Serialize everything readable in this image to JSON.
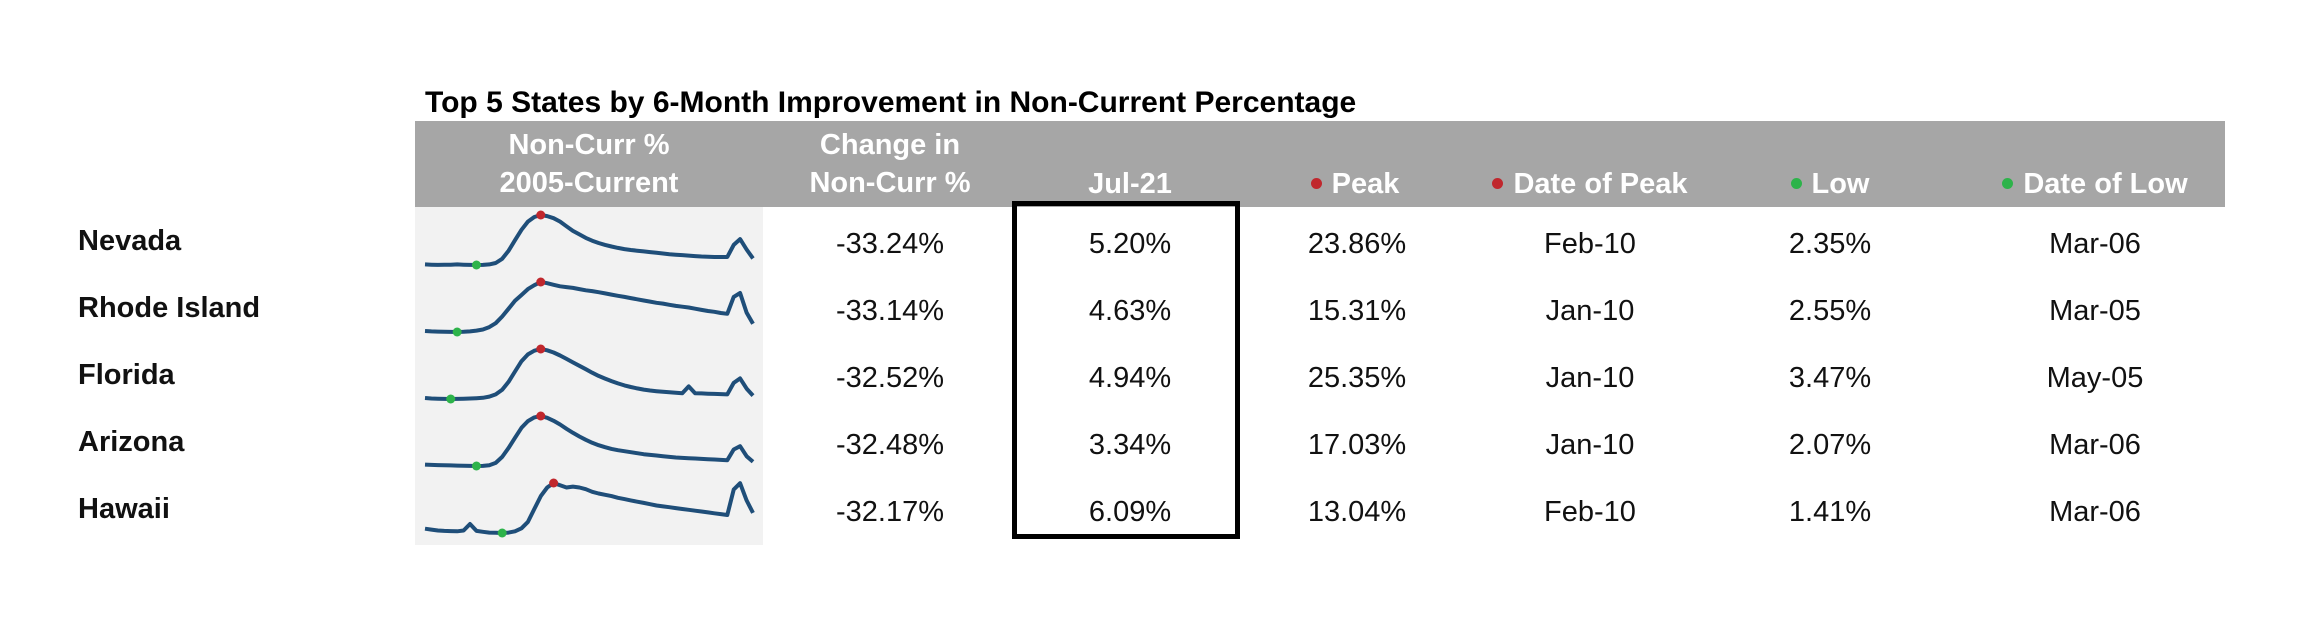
{
  "title": "Top 5 States by 6-Month Improvement in Non-Current Percentage",
  "headers": {
    "sparkline_line1": "Non-Curr %",
    "sparkline_line2": "2005-Current",
    "change_line1": "Change in",
    "change_line2": "Non-Curr %",
    "current": "Jul-21",
    "peak": "Peak",
    "date_of_peak": "Date of Peak",
    "low": "Low",
    "date_of_low": "Date of Low"
  },
  "colors": {
    "header_bg": "#a6a6a6",
    "header_text": "#ffffff",
    "sparkline": "#1f4e79",
    "peak_marker": "#c0272d",
    "low_marker": "#2db34a",
    "sparkline_bg": "#f2f2f2"
  },
  "chart_data": {
    "type": "table",
    "columns": [
      "State",
      "Non-Curr % 2005-Current",
      "Change in Non-Curr %",
      "Jul-21",
      "Peak",
      "Date of Peak",
      "Low",
      "Date of Low"
    ],
    "rows": [
      {
        "state": "Nevada",
        "change": "-33.24%",
        "current": "5.20%",
        "peak": "23.86%",
        "date_of_peak": "Feb-10",
        "low": "2.35%",
        "date_of_low": "Mar-06"
      },
      {
        "state": "Rhode Island",
        "change": "-33.14%",
        "current": "4.63%",
        "peak": "15.31%",
        "date_of_peak": "Jan-10",
        "low": "2.55%",
        "date_of_low": "Mar-05"
      },
      {
        "state": "Florida",
        "change": "-32.52%",
        "current": "4.94%",
        "peak": "25.35%",
        "date_of_peak": "Jan-10",
        "low": "3.47%",
        "date_of_low": "May-05"
      },
      {
        "state": "Arizona",
        "change": "-32.48%",
        "current": "3.34%",
        "peak": "17.03%",
        "date_of_peak": "Jan-10",
        "low": "2.07%",
        "date_of_low": "Mar-06"
      },
      {
        "state": "Hawaii",
        "change": "-32.17%",
        "current": "6.09%",
        "peak": "13.04%",
        "date_of_peak": "Feb-10",
        "low": "1.41%",
        "date_of_low": "Mar-06"
      }
    ],
    "sparklines": [
      {
        "state": "Nevada",
        "values": [
          2.6,
          2.5,
          2.4,
          2.45,
          2.5,
          2.6,
          2.5,
          2.4,
          2.35,
          2.4,
          2.6,
          3.2,
          5.0,
          8.5,
          13.0,
          17.5,
          21.0,
          23.0,
          23.86,
          23.4,
          22.5,
          21.0,
          19.0,
          17.0,
          15.5,
          14.0,
          12.8,
          11.8,
          11.0,
          10.3,
          9.7,
          9.2,
          8.8,
          8.5,
          8.2,
          7.9,
          7.6,
          7.3,
          7.0,
          6.8,
          6.6,
          6.4,
          6.2,
          6.0,
          5.9,
          5.8,
          5.8,
          5.8,
          11.0,
          13.5,
          9.0,
          5.2
        ],
        "peak_index": 18,
        "low_index": 8
      },
      {
        "state": "Rhode Island",
        "values": [
          2.8,
          2.7,
          2.65,
          2.6,
          2.58,
          2.55,
          2.6,
          2.7,
          2.9,
          3.2,
          3.8,
          4.8,
          6.5,
          8.5,
          10.5,
          12.0,
          13.5,
          14.5,
          15.31,
          15.0,
          14.6,
          14.2,
          14.0,
          13.8,
          13.5,
          13.2,
          13.0,
          12.7,
          12.4,
          12.1,
          11.8,
          11.5,
          11.2,
          10.9,
          10.6,
          10.3,
          10.0,
          9.8,
          9.5,
          9.2,
          9.0,
          8.8,
          8.5,
          8.2,
          7.9,
          7.7,
          7.4,
          7.2,
          11.5,
          12.5,
          7.5,
          4.63
        ],
        "peak_index": 18,
        "low_index": 5
      },
      {
        "state": "Florida",
        "values": [
          3.9,
          3.7,
          3.6,
          3.5,
          3.47,
          3.5,
          3.6,
          3.7,
          3.8,
          4.0,
          4.5,
          5.5,
          7.5,
          11.0,
          15.5,
          20.0,
          23.0,
          24.6,
          25.35,
          24.8,
          23.8,
          22.5,
          21.0,
          19.5,
          18.0,
          16.5,
          15.0,
          13.6,
          12.4,
          11.3,
          10.3,
          9.4,
          8.7,
          8.1,
          7.6,
          7.2,
          6.9,
          6.6,
          6.4,
          6.2,
          6.0,
          9.0,
          6.0,
          5.9,
          5.8,
          5.7,
          5.6,
          5.5,
          10.5,
          12.5,
          8.0,
          4.94
        ],
        "peak_index": 18,
        "low_index": 4
      },
      {
        "state": "Arizona",
        "values": [
          2.5,
          2.4,
          2.35,
          2.3,
          2.25,
          2.2,
          2.15,
          2.1,
          2.07,
          2.1,
          2.3,
          3.0,
          4.8,
          7.5,
          10.5,
          13.5,
          15.5,
          16.6,
          17.03,
          16.5,
          15.6,
          14.5,
          13.2,
          12.0,
          10.9,
          9.9,
          9.0,
          8.3,
          7.7,
          7.2,
          6.8,
          6.5,
          6.2,
          5.9,
          5.6,
          5.4,
          5.2,
          5.0,
          4.8,
          4.6,
          4.5,
          4.4,
          4.3,
          4.2,
          4.1,
          4.0,
          3.9,
          3.8,
          7.0,
          8.0,
          5.0,
          3.34
        ],
        "peak_index": 18,
        "low_index": 8
      },
      {
        "state": "Hawaii",
        "values": [
          2.4,
          2.2,
          2.0,
          1.9,
          1.85,
          1.8,
          2.0,
          3.5,
          1.9,
          1.7,
          1.5,
          1.45,
          1.41,
          1.5,
          1.8,
          2.5,
          4.0,
          7.0,
          10.0,
          12.0,
          13.04,
          12.5,
          12.0,
          12.2,
          12.0,
          11.6,
          11.0,
          10.6,
          10.3,
          10.0,
          9.6,
          9.3,
          9.0,
          8.7,
          8.4,
          8.1,
          7.8,
          7.6,
          7.4,
          7.2,
          7.0,
          6.8,
          6.6,
          6.4,
          6.2,
          6.0,
          5.8,
          5.6,
          11.5,
          13.0,
          9.0,
          6.09
        ],
        "peak_index": 20,
        "low_index": 12
      }
    ]
  }
}
